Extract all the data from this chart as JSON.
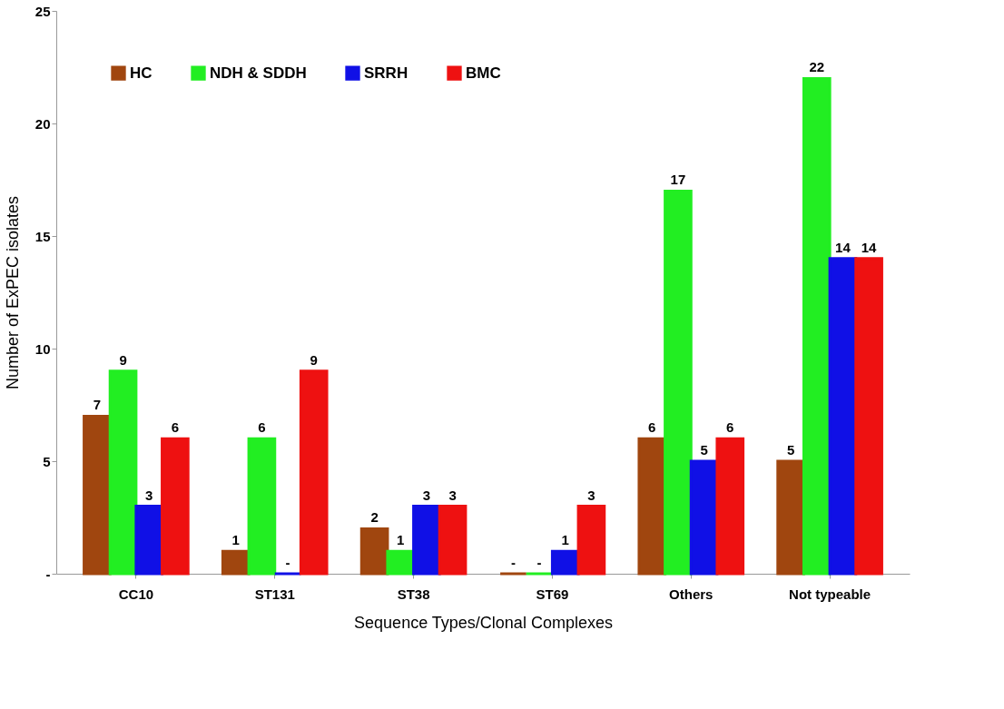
{
  "chart_data": {
    "type": "bar",
    "xlabel": "Sequence Types/Clonal Complexes",
    "ylabel": "Number of ExPEC isolates",
    "categories": [
      "CC10",
      "ST131",
      "ST38",
      "ST69",
      "Others",
      "Not typeable"
    ],
    "series": [
      {
        "name": "HC",
        "color": "#a0460f",
        "values": [
          7,
          1,
          2,
          0,
          6,
          5
        ],
        "value_labels": [
          "7",
          "1",
          "2",
          "-",
          "6",
          "5"
        ]
      },
      {
        "name": "NDH & SDDH",
        "color": "#22ee22",
        "values": [
          9,
          6,
          1,
          0,
          17,
          22
        ],
        "value_labels": [
          "9",
          "6",
          "1",
          "-",
          "17",
          "22"
        ]
      },
      {
        "name": "SRRH",
        "color": "#1010e6",
        "values": [
          3,
          0,
          3,
          1,
          5,
          14
        ],
        "value_labels": [
          "3",
          "-",
          "3",
          "1",
          "5",
          "14"
        ]
      },
      {
        "name": "BMC",
        "color": "#ee1111",
        "values": [
          6,
          9,
          3,
          3,
          6,
          14
        ],
        "value_labels": [
          "6",
          "9",
          "3",
          "3",
          "6",
          "14"
        ]
      }
    ],
    "ylim": [
      0,
      25
    ],
    "yticks": [
      {
        "value": 0,
        "label": "-"
      },
      5,
      10,
      15,
      20,
      25
    ],
    "grid": false,
    "legend": "top left"
  }
}
